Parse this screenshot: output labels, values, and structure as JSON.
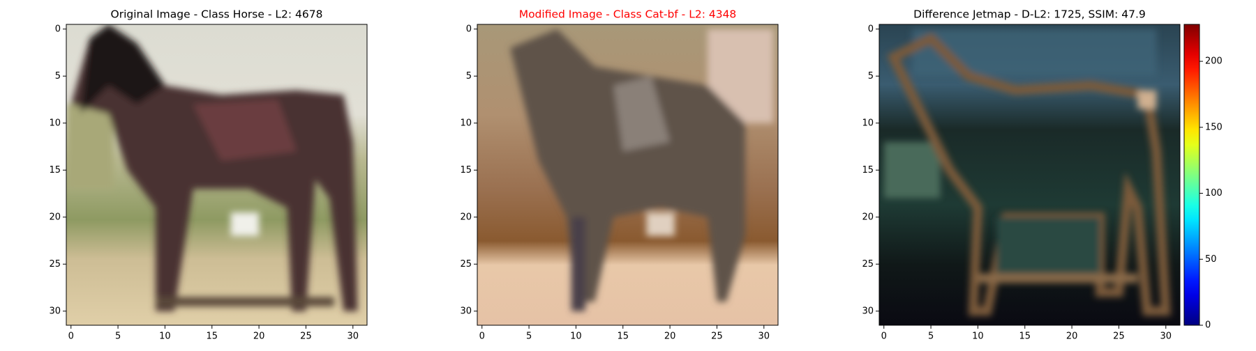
{
  "chart_data": [
    {
      "type": "image",
      "title": "Original Image - Class Horse - L2: 4678",
      "title_color": "#000000",
      "xlim": [
        -0.5,
        31.5
      ],
      "ylim": [
        31.5,
        -0.5
      ],
      "xticks": [
        0,
        5,
        10,
        15,
        20,
        25,
        30
      ],
      "yticks": [
        0,
        5,
        10,
        15,
        20,
        25,
        30
      ]
    },
    {
      "type": "image",
      "title": "Modified Image - Class Cat-bf - L2: 4348",
      "title_color": "#ff0000",
      "xlim": [
        -0.5,
        31.5
      ],
      "ylim": [
        31.5,
        -0.5
      ],
      "xticks": [
        0,
        5,
        10,
        15,
        20,
        25,
        30
      ],
      "yticks": [
        0,
        5,
        10,
        15,
        20,
        25,
        30
      ]
    },
    {
      "type": "image",
      "title": "Difference Jetmap - D-L2: 1725, SSIM: 47.9",
      "title_color": "#000000",
      "xlim": [
        -0.5,
        31.5
      ],
      "ylim": [
        31.5,
        -0.5
      ],
      "xticks": [
        0,
        5,
        10,
        15,
        20,
        25,
        30
      ],
      "yticks": [
        0,
        5,
        10,
        15,
        20,
        25,
        30
      ],
      "colorbar": {
        "colormap": "jet",
        "lim": [
          0,
          228
        ],
        "ticks": [
          0,
          50,
          100,
          150,
          200
        ]
      }
    }
  ]
}
